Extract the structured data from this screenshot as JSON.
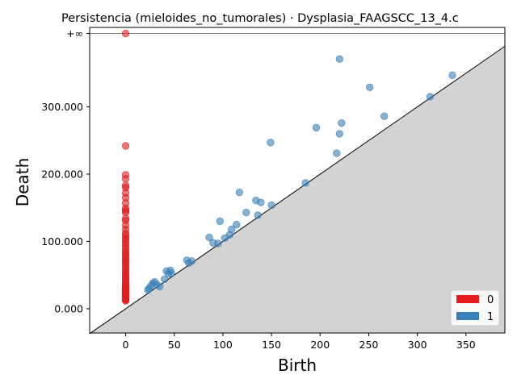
{
  "chart_data": {
    "type": "scatter",
    "title": "Persistencia (mieloides_no_tumorales) · Dysplasia_FAAGSCC_13_4.c",
    "xlabel": "Birth",
    "ylabel": "Death",
    "xlim": [
      -37,
      390
    ],
    "ylim": [
      -36,
      418
    ],
    "x_ticks": [
      0,
      50,
      100,
      150,
      200,
      250,
      300,
      350
    ],
    "y_ticks": [
      0,
      100,
      200,
      300
    ],
    "y_tick_labels": [
      "0.000",
      "100.000",
      "200.000",
      "300.000"
    ],
    "infinity_label": "+∞",
    "infinity_value": 409,
    "diagonal": true,
    "legend_position": "lower-right",
    "colors": {
      "h0": "#e41a1c",
      "h1": "#377eb8",
      "diagonal_fill": "#d3d3d3",
      "infinity_line": "#808080"
    },
    "series": [
      {
        "name": "0",
        "color": "#e41a1c",
        "x": [
          0,
          0,
          0,
          0,
          0,
          0,
          0,
          0,
          0,
          0,
          0,
          0,
          0,
          0,
          0,
          0,
          0,
          0,
          0,
          0,
          0,
          0,
          0,
          0,
          0,
          0,
          0,
          0,
          0,
          0,
          0,
          0,
          0,
          0,
          0,
          0,
          0,
          0,
          0,
          0,
          0,
          0,
          0,
          0,
          0,
          0,
          0,
          0,
          0,
          0,
          0,
          0,
          0,
          0,
          0,
          0,
          0,
          0,
          0,
          0,
          0,
          0,
          0,
          0
        ],
        "y": [
          409,
          242,
          199,
          193,
          183,
          180,
          172,
          165,
          157,
          149,
          146,
          143,
          134,
          131,
          124,
          118,
          112,
          109,
          105,
          102,
          98,
          94,
          90,
          86,
          83,
          80,
          76,
          73,
          70,
          67,
          64,
          60,
          57,
          54,
          51,
          48,
          46,
          44,
          41,
          39,
          36,
          34,
          32,
          30,
          28,
          26,
          24,
          22,
          21,
          20,
          19,
          18,
          17,
          16,
          15,
          14,
          13,
          12,
          27,
          29,
          31,
          33,
          23,
          25
        ]
      },
      {
        "name": "1",
        "color": "#377eb8",
        "x": [
          220,
          251,
          336,
          313,
          266,
          222,
          196,
          220,
          149,
          217,
          185,
          117,
          134,
          139,
          150,
          97,
          124,
          136,
          114,
          109,
          86,
          107,
          102,
          90,
          95,
          63,
          68,
          65,
          42,
          46,
          47,
          44,
          40,
          30,
          26,
          28,
          32,
          24,
          35,
          23
        ],
        "y": [
          371,
          329,
          347,
          315,
          286,
          276,
          269,
          260,
          247,
          231,
          187,
          173,
          161,
          158,
          154,
          130,
          143,
          139,
          125,
          118,
          106,
          110,
          105,
          98,
          97,
          72,
          71,
          68,
          56,
          57,
          53,
          52,
          44,
          40,
          34,
          38,
          36,
          30,
          33,
          28
        ]
      }
    ]
  }
}
